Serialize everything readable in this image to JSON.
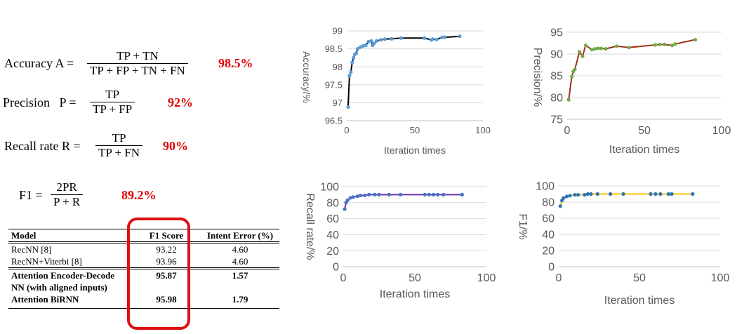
{
  "formulas": {
    "accuracy": {
      "label": "Accuracy A =",
      "num": "TP + TN",
      "den": "TP + FP + TN + FN",
      "value": "98.5%"
    },
    "precision": {
      "label": "Precision   P =",
      "num": "TP",
      "den": "TP + FP",
      "value": "92%"
    },
    "recall": {
      "label": "Recall rate R =",
      "num": "TP",
      "den": "TP + FN",
      "value": "90%"
    },
    "f1": {
      "label": "F1 =",
      "num": "2PR",
      "den": "P + R",
      "value": "89.2%"
    }
  },
  "table": {
    "headers": [
      "Model",
      "F1 Score",
      "Intent Error (%)"
    ],
    "rows": [
      {
        "model": "RecNN [8]",
        "f1": "93.22",
        "err": "4.60"
      },
      {
        "model": "RecNN+Viterbi [8]",
        "f1": "93.96",
        "err": "4.60"
      },
      {
        "model": "Attention Encoder-Decode",
        "model2": "NN (with aligned inputs)",
        "f1": "95.87",
        "err": "1.57"
      },
      {
        "model": "Attention BiRNN",
        "f1": "95.98",
        "err": "1.79"
      }
    ]
  },
  "chart_data": [
    {
      "id": "acc",
      "type": "line",
      "xlabel": "Iteration times",
      "ylabel": "Accuracy/%",
      "xlim": [
        0,
        100
      ],
      "ylim": [
        96.5,
        99
      ],
      "xticks": [
        0,
        50,
        100
      ],
      "yticks": [
        96.5,
        97,
        97.5,
        98,
        98.5,
        99
      ],
      "grid": true,
      "line_color": "#000000",
      "marker_color": "#5b9bd5",
      "x": [
        1,
        2,
        3,
        4,
        5,
        6,
        7,
        8,
        10,
        12,
        14,
        16,
        18,
        19,
        20,
        22,
        25,
        28,
        33,
        40,
        57,
        62,
        63,
        66,
        70,
        72,
        83
      ],
      "y": [
        96.88,
        97.75,
        97.85,
        98.12,
        98.25,
        98.35,
        98.38,
        98.5,
        98.55,
        98.58,
        98.6,
        98.7,
        98.72,
        98.6,
        98.65,
        98.72,
        98.75,
        98.77,
        98.78,
        98.8,
        98.8,
        98.75,
        98.77,
        98.76,
        98.82,
        98.82,
        98.85
      ]
    },
    {
      "id": "prec",
      "type": "line",
      "xlabel": "Iteration times",
      "ylabel": "Precision/%",
      "xlim": [
        0,
        100
      ],
      "ylim": [
        75,
        95
      ],
      "xticks": [
        0,
        50,
        100
      ],
      "yticks": [
        75,
        80,
        85,
        90,
        95
      ],
      "grid": true,
      "line_color": "#a0301c",
      "marker_color": "#70ad47",
      "x": [
        1,
        3,
        4,
        5,
        8,
        10,
        12,
        16,
        18,
        20,
        22,
        25,
        32,
        40,
        57,
        60,
        63,
        68,
        70,
        83
      ],
      "y": [
        79.5,
        84.8,
        86,
        86.5,
        90.5,
        89.5,
        92,
        91,
        91.2,
        91.3,
        91.3,
        91.2,
        91.8,
        91.5,
        92.1,
        92.2,
        92.2,
        92.0,
        92.3,
        93.3
      ]
    },
    {
      "id": "rec",
      "type": "line",
      "xlabel": "Iteration times",
      "ylabel": "Recall rate/%",
      "xlim": [
        0,
        100
      ],
      "ylim": [
        0,
        100
      ],
      "xticks": [
        0,
        50,
        100
      ],
      "yticks": [
        0,
        20,
        40,
        60,
        80,
        100
      ],
      "grid": true,
      "line_color": "#7030a0",
      "marker_color": "#4472c4",
      "x": [
        1,
        2,
        3,
        5,
        7,
        10,
        12,
        15,
        18,
        22,
        25,
        32,
        40,
        57,
        60,
        63,
        66,
        70,
        83
      ],
      "y": [
        72,
        80,
        83,
        86,
        87,
        88,
        89,
        89,
        90,
        90,
        90,
        90,
        90,
        90,
        90,
        90,
        90,
        90,
        90
      ]
    },
    {
      "id": "f1",
      "type": "line",
      "xlabel": "Iteration times",
      "ylabel": "F1/%",
      "xlim": [
        0,
        100
      ],
      "ylim": [
        0,
        100
      ],
      "xticks": [
        0,
        50,
        100
      ],
      "yticks": [
        0,
        20,
        40,
        60,
        80,
        100
      ],
      "grid": true,
      "line_color": "#ffc000",
      "marker_color": "#2e75b6",
      "x": [
        1,
        2,
        3,
        5,
        7,
        10,
        12,
        16,
        18,
        20,
        24,
        32,
        40,
        57,
        60,
        63,
        68,
        70,
        83
      ],
      "y": [
        75,
        82,
        85,
        87,
        88,
        89,
        89,
        89,
        90,
        90,
        90,
        90,
        90,
        90,
        90,
        90,
        90,
        90,
        90
      ]
    }
  ]
}
